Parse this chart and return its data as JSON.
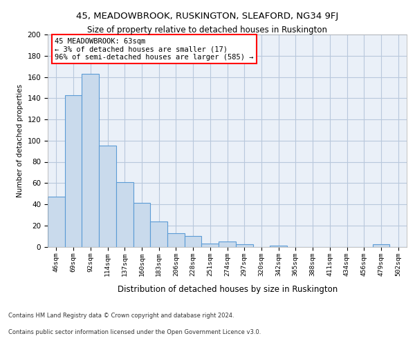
{
  "title1": "45, MEADOWBROOK, RUSKINGTON, SLEAFORD, NG34 9FJ",
  "title2": "Size of property relative to detached houses in Ruskington",
  "xlabel": "Distribution of detached houses by size in Ruskington",
  "ylabel": "Number of detached properties",
  "categories": [
    "46sqm",
    "69sqm",
    "92sqm",
    "114sqm",
    "137sqm",
    "160sqm",
    "183sqm",
    "206sqm",
    "228sqm",
    "251sqm",
    "274sqm",
    "297sqm",
    "320sqm",
    "342sqm",
    "365sqm",
    "388sqm",
    "411sqm",
    "434sqm",
    "456sqm",
    "479sqm",
    "502sqm"
  ],
  "values": [
    47,
    143,
    163,
    95,
    61,
    41,
    24,
    13,
    10,
    3,
    5,
    2,
    0,
    1,
    0,
    0,
    0,
    0,
    0,
    2,
    0
  ],
  "bar_color": "#c9daec",
  "bar_edge_color": "#5b9bd5",
  "annotation_text": "45 MEADOWBROOK: 63sqm\n← 3% of detached houses are smaller (17)\n96% of semi-detached houses are larger (585) →",
  "ylim": [
    0,
    200
  ],
  "yticks": [
    0,
    20,
    40,
    60,
    80,
    100,
    120,
    140,
    160,
    180,
    200
  ],
  "footnote1": "Contains HM Land Registry data © Crown copyright and database right 2024.",
  "footnote2": "Contains public sector information licensed under the Open Government Licence v3.0.",
  "bg_color": "#eaf0f8",
  "grid_color": "#b8c8dc"
}
